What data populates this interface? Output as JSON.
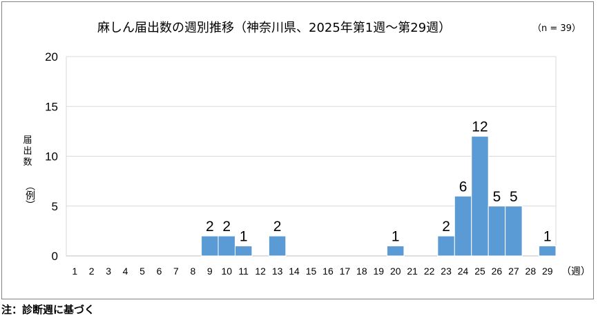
{
  "chart_data": {
    "type": "bar",
    "title": "麻しん届出数の週別推移（神奈川県、2025年第1週～第29週）",
    "sample_size": "（n = 39）",
    "ylabel_value": "届出数",
    "ylabel_unit": "（例）",
    "x_unit": "（週）",
    "categories": [
      "1",
      "2",
      "3",
      "4",
      "5",
      "6",
      "7",
      "8",
      "9",
      "10",
      "11",
      "12",
      "13",
      "14",
      "15",
      "16",
      "17",
      "18",
      "19",
      "20",
      "21",
      "22",
      "23",
      "24",
      "25",
      "26",
      "27",
      "28",
      "29"
    ],
    "values": [
      0,
      0,
      0,
      0,
      0,
      0,
      0,
      0,
      2,
      2,
      1,
      0,
      2,
      0,
      0,
      0,
      0,
      0,
      0,
      1,
      0,
      0,
      2,
      6,
      12,
      5,
      5,
      0,
      1
    ],
    "ylim": [
      0,
      20
    ],
    "yticks": [
      0,
      5,
      10,
      15,
      20
    ],
    "grid": true,
    "bar_color": "#5B9BD5"
  },
  "note": "注：診断週に基づく"
}
